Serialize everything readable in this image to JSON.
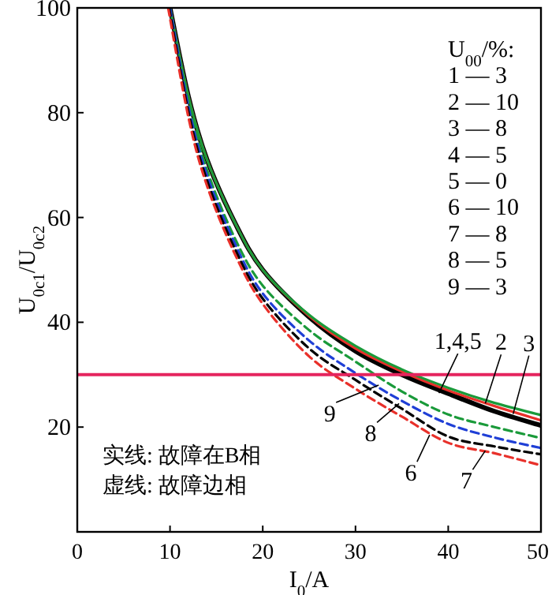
{
  "chart_data": {
    "type": "line",
    "xlabel": "I$_{0}$/A",
    "ylabel": "U$_{0c1}$/U$_{0c2}$",
    "xlim": [
      0,
      50
    ],
    "ylim": [
      0,
      100
    ],
    "xticks": [
      0,
      10,
      20,
      30,
      40,
      50
    ],
    "yticks": [
      20,
      40,
      60,
      80,
      100
    ],
    "grid": false,
    "series": [
      {
        "color": "#000000",
        "line_style": "solid",
        "x": [
          10,
          12,
          14,
          17,
          20,
          25,
          30,
          35,
          40,
          45,
          50
        ],
        "values": [
          100,
          83,
          71,
          59,
          50,
          41,
          34.5,
          30,
          26.4,
          23,
          20.3
        ]
      },
      {
        "color": "#e8302a",
        "line_style": "solid",
        "x": [
          10,
          12,
          14,
          17,
          20,
          25,
          30,
          35,
          40,
          45,
          50
        ],
        "values": [
          100,
          83,
          71,
          59,
          50,
          41.2,
          35,
          30.6,
          27,
          24,
          21.3
        ]
      },
      {
        "color": "#1a9a3a",
        "line_style": "solid",
        "x": [
          10,
          12,
          14,
          17,
          20,
          25,
          30,
          35,
          40,
          45,
          50
        ],
        "values": [
          100,
          83,
          71,
          59,
          50,
          41.4,
          35.5,
          31,
          27.5,
          24.6,
          22.3
        ]
      },
      {
        "color": "#1a9a3a",
        "line_style": "dashed",
        "x": [
          10,
          12,
          14,
          17,
          20,
          25,
          30,
          35,
          40,
          45,
          50
        ],
        "values": [
          100,
          82,
          69,
          56,
          47,
          38.5,
          32.5,
          26.8,
          22.4,
          20,
          17.9
        ]
      },
      {
        "color": "#1f3fd6",
        "line_style": "dashed",
        "x": [
          10,
          12,
          14,
          17,
          20,
          25,
          30,
          35,
          40,
          45,
          50
        ],
        "values": [
          100,
          81,
          68,
          55,
          45.5,
          36.5,
          30.3,
          25,
          20.6,
          18,
          16
        ]
      },
      {
        "color": "#000000",
        "line_style": "dashed",
        "x": [
          9.9,
          12,
          14,
          17,
          20,
          25,
          30,
          35,
          40,
          45,
          50
        ],
        "values": [
          100,
          80,
          67,
          54,
          44.5,
          35,
          29,
          23.5,
          18.2,
          16.3,
          14.8
        ]
      },
      {
        "color": "#e8302a",
        "line_style": "dashed",
        "x": [
          9.8,
          12,
          14,
          17,
          20,
          25,
          30,
          35,
          40,
          45,
          50
        ],
        "values": [
          100,
          79,
          66,
          53,
          43.5,
          33.5,
          27.3,
          22,
          17,
          15,
          12.7
        ]
      }
    ],
    "ref_lines": [
      {
        "axis": "y",
        "value": 30,
        "color": "#e5245e"
      }
    ],
    "annotations": [
      "U$_{00}$/%:",
      "1 — 3",
      "2 — 10",
      "3 — 8",
      "4 — 5",
      "5 — 0",
      "6 — 10",
      "7 — 8",
      "8 — 5",
      "9 — 3",
      "实线: 故障在B相",
      "虚线: 故障边相",
      {
        "text": "1,4,5",
        "x": 39,
        "y": 26.5
      },
      {
        "text": "2",
        "x": 44,
        "y": 24.5
      },
      {
        "text": "3",
        "x": 47,
        "y": 22.5
      },
      {
        "text": "9",
        "x": 32.5,
        "y": 28
      },
      {
        "text": "8",
        "x": 34.7,
        "y": 24.5
      },
      {
        "text": "6",
        "x": 38,
        "y": 18.5
      },
      {
        "text": "7",
        "x": 44,
        "y": 15.5
      }
    ]
  }
}
